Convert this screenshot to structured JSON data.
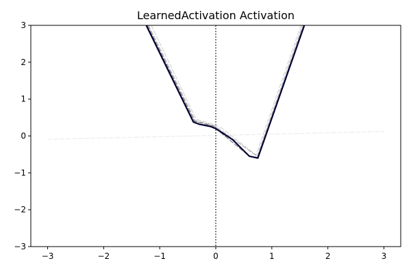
{
  "chart_data": {
    "type": "line",
    "title": "LearnedActivation Activation",
    "xlabel": "",
    "ylabel": "",
    "xlim": [
      -3.3,
      3.3
    ],
    "ylim": [
      -3,
      3
    ],
    "xticks": [
      -3,
      -2,
      -1,
      0,
      1,
      2,
      3
    ],
    "yticks": [
      -3,
      -2,
      -1,
      0,
      1,
      2,
      3
    ],
    "grid": false,
    "legend": "none",
    "vline_x": 0,
    "series": [
      {
        "values": [
          [
            -3.0,
            -0.09
          ],
          [
            3.0,
            0.12
          ]
        ],
        "style": "dashed",
        "color": "#cccccc",
        "opacity": 0.35
      },
      {
        "values": [
          [
            -1.15,
            3.0
          ],
          [
            -0.35,
            0.45
          ],
          [
            -0.05,
            0.32
          ],
          [
            0.1,
            0.22
          ],
          [
            0.72,
            -0.52
          ],
          [
            1.52,
            3.0
          ]
        ],
        "style": "dashed",
        "color": "#bbbbbb",
        "opacity": 0.6
      },
      {
        "values": [
          [
            -1.2,
            3.0
          ],
          [
            -0.37,
            0.42
          ],
          [
            -0.05,
            0.29
          ],
          [
            0.05,
            0.2
          ],
          [
            0.74,
            -0.55
          ],
          [
            1.55,
            3.0
          ]
        ],
        "style": "dashed",
        "color": "#999999",
        "opacity": 0.7
      },
      {
        "values": [
          [
            -1.22,
            3.0
          ],
          [
            -0.38,
            0.4
          ],
          [
            -0.05,
            0.27
          ],
          [
            0.0,
            0.2
          ],
          [
            0.6,
            -0.55
          ],
          [
            0.75,
            -0.58
          ],
          [
            1.57,
            3.0
          ]
        ],
        "style": "dashed",
        "color": "#666666",
        "opacity": 0.8
      },
      {
        "values": [
          [
            -1.24,
            3.0
          ],
          [
            -0.4,
            0.38
          ],
          [
            -0.3,
            0.32
          ],
          [
            -0.1,
            0.26
          ],
          [
            0.0,
            0.2
          ],
          [
            0.3,
            -0.1
          ],
          [
            0.6,
            -0.55
          ],
          [
            0.75,
            -0.6
          ],
          [
            1.58,
            3.0
          ]
        ],
        "style": "solid",
        "color": "#000033",
        "opacity": 1
      }
    ]
  }
}
